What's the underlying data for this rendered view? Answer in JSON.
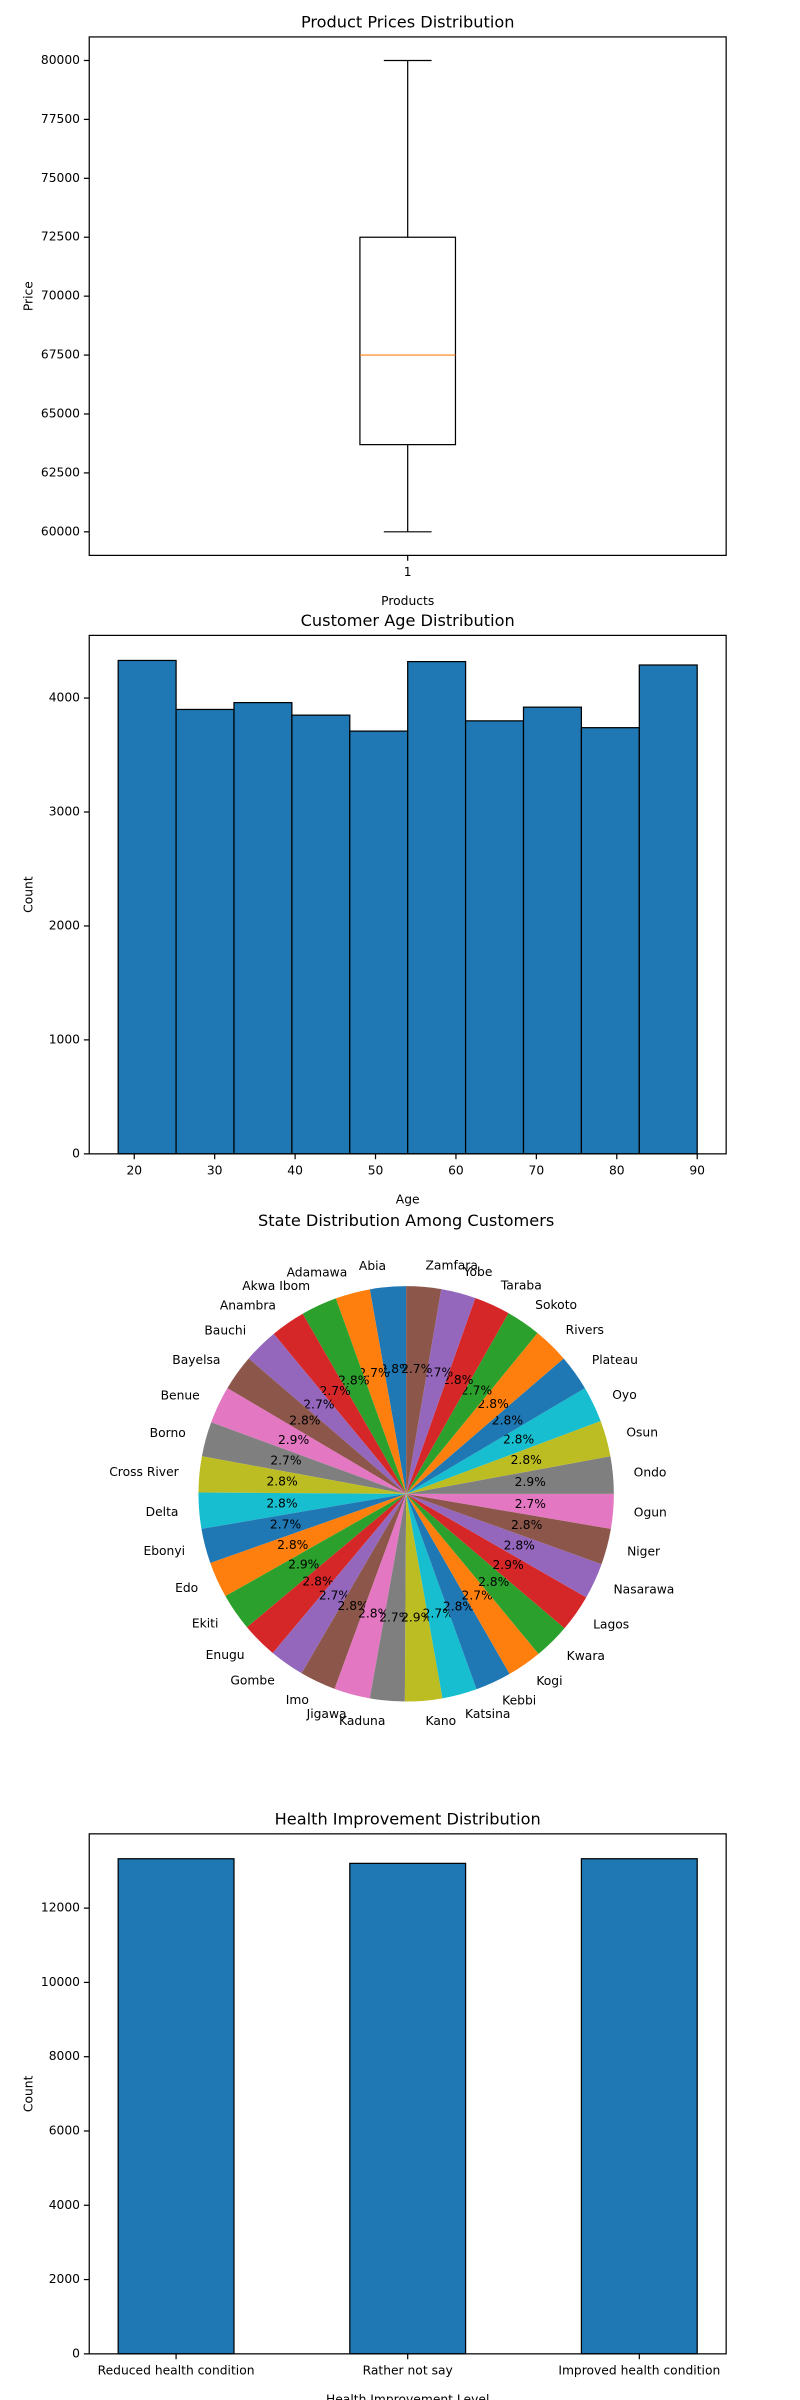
{
  "chart_data": [
    {
      "type": "box",
      "title": "Product Prices Distribution",
      "xlabel": "Products",
      "ylabel": "Price",
      "categories": [
        "1"
      ],
      "stats": {
        "whislo": 60000,
        "q1": 63700,
        "median": 67500,
        "q3": 72500,
        "whishi": 80000
      },
      "color": "#000000",
      "median_color": "#ff7f0e",
      "ylim": [
        59000,
        81000
      ],
      "yticks": [
        60000,
        62500,
        65000,
        67500,
        70000,
        72500,
        75000,
        77500,
        80000
      ]
    },
    {
      "type": "histogram",
      "title": "Customer Age Distribution",
      "xlabel": "Age",
      "ylabel": "Count",
      "bins": [
        18,
        25.2,
        32.4,
        39.6,
        46.8,
        54,
        61.2,
        68.4,
        75.6,
        82.8,
        90
      ],
      "counts": [
        4330,
        3900,
        3960,
        3850,
        3710,
        4320,
        3800,
        3920,
        3740,
        4290
      ],
      "color": "#1f77b4",
      "xlim": [
        14.4,
        93.6
      ],
      "xticks": [
        20,
        30,
        40,
        50,
        60,
        70,
        80,
        90
      ],
      "ylim": [
        0,
        4550
      ],
      "yticks": [
        0,
        1000,
        2000,
        3000,
        4000
      ]
    },
    {
      "type": "pie",
      "title": "State Distribution Among Customers",
      "startangle": 90,
      "labels": [
        "Abia",
        "Adamawa",
        "Akwa Ibom",
        "Anambra",
        "Bauchi",
        "Bayelsa",
        "Benue",
        "Borno",
        "Cross River",
        "Delta",
        "Ebonyi",
        "Edo",
        "Ekiti",
        "Enugu",
        "Gombe",
        "Imo",
        "Jigawa",
        "Kaduna",
        "Kano",
        "Katsina",
        "Kebbi",
        "Kogi",
        "Kwara",
        "Lagos",
        "Nasarawa",
        "Niger",
        "Ogun",
        "Ondo",
        "Osun",
        "Oyo",
        "Plateau",
        "Rivers",
        "Sokoto",
        "Taraba",
        "Yobe",
        "Zamfara"
      ],
      "values": [
        2.8,
        2.7,
        2.8,
        2.7,
        2.7,
        2.8,
        2.9,
        2.7,
        2.8,
        2.8,
        2.7,
        2.8,
        2.9,
        2.8,
        2.7,
        2.8,
        2.8,
        2.7,
        2.9,
        2.7,
        2.8,
        2.7,
        2.8,
        2.9,
        2.8,
        2.8,
        2.7,
        2.9,
        2.8,
        2.8,
        2.8,
        2.8,
        2.7,
        2.8,
        2.7,
        2.7
      ],
      "value_labels": [
        "2.8%",
        "2.7%",
        "2.8%",
        "2.7%",
        "2.7%",
        "2.8%",
        "2.9%",
        "2.7%",
        "2.8%",
        "2.8%",
        "2.7%",
        "2.8%",
        "2.9%",
        "2.8%",
        "2.7%",
        "2.8%",
        "2.8%",
        "2.7%",
        "2.9%",
        "2.7%",
        "2.8%",
        "2.7%",
        "2.8%",
        "2.9%",
        "2.8%",
        "2.8%",
        "2.7%",
        "2.9%",
        "2.8%",
        "2.8%",
        "2.8%",
        "2.8%",
        "2.7%",
        "2.8%",
        "2.7%",
        "2.7%"
      ],
      "colors": [
        "#1f77b4",
        "#ff7f0e",
        "#2ca02c",
        "#d62728",
        "#9467bd",
        "#8c564b",
        "#e377c2",
        "#7f7f7f",
        "#bcbd22",
        "#17becf"
      ]
    },
    {
      "type": "bar",
      "title": "Health Improvement Distribution",
      "xlabel": "Health Improvement Level",
      "ylabel": "Count",
      "categories": [
        "Reduced health condition",
        "Rather not say",
        "Improved health condition"
      ],
      "values": [
        13330,
        13205,
        13330
      ],
      "color": "#1f77b4",
      "ylim": [
        0,
        14000
      ],
      "yticks": [
        0,
        2000,
        4000,
        6000,
        8000,
        10000,
        12000
      ]
    }
  ]
}
